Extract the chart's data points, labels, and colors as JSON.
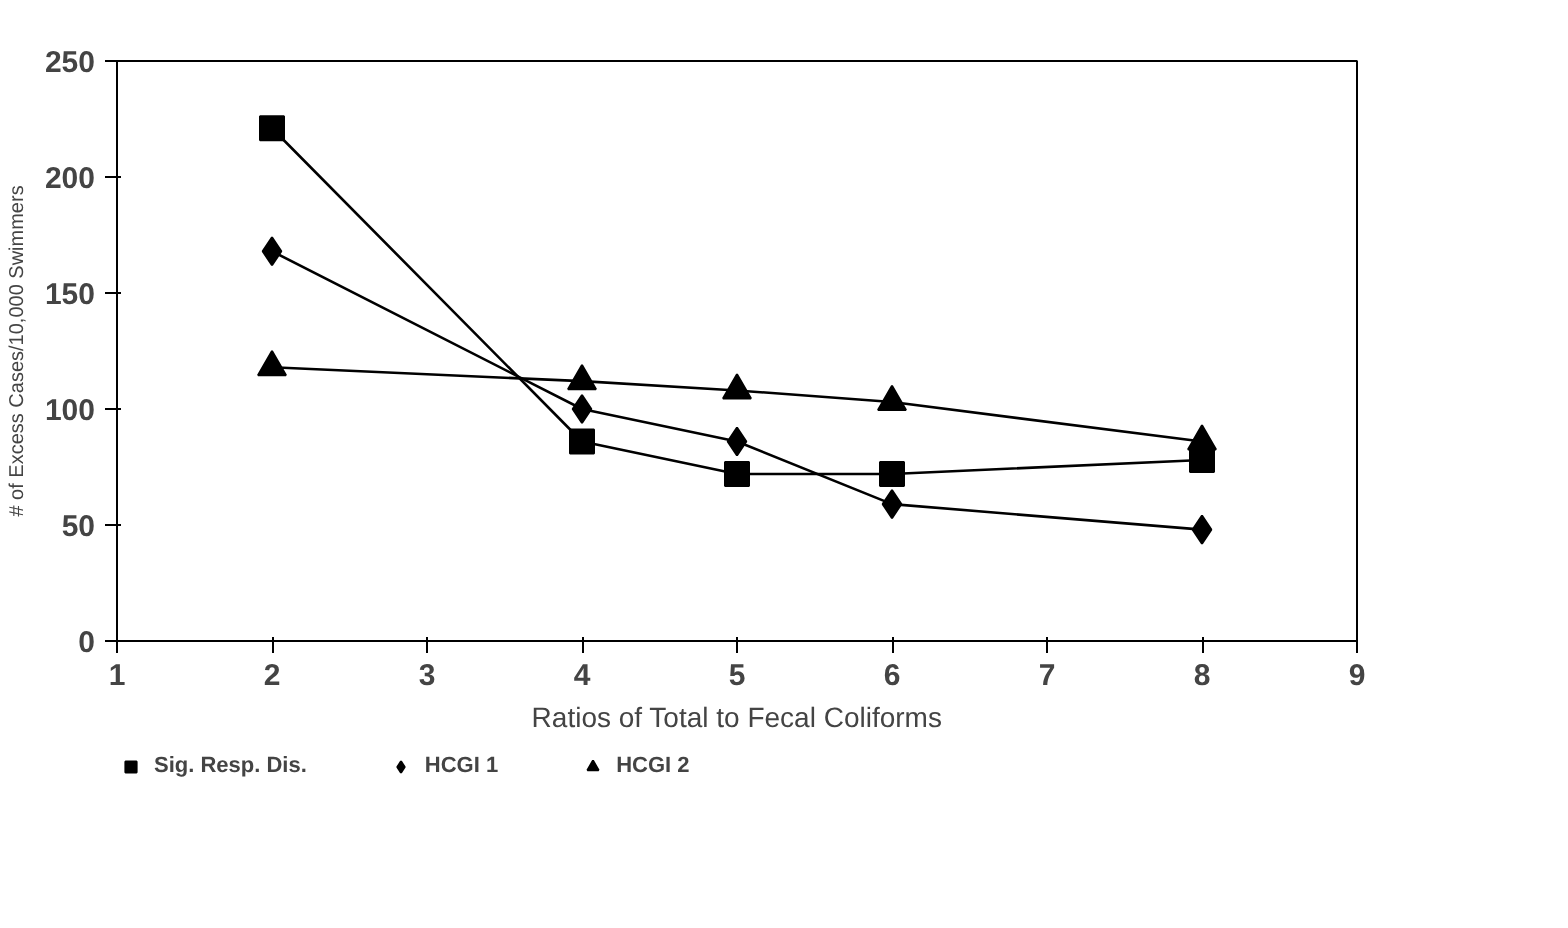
{
  "chart_data": {
    "type": "line",
    "xlabel": "Ratios of Total to Fecal Coliforms",
    "ylabel": "# of Excess Cases/10,000 Swimmers",
    "x": [
      2,
      4,
      5,
      6,
      8
    ],
    "series": [
      {
        "name": "Sig. Resp. Dis.",
        "color": "#000000",
        "marker": "square",
        "values": [
          221,
          86,
          72,
          72,
          78
        ]
      },
      {
        "name": "HCGI 1",
        "color": "#000000",
        "marker": "diamond",
        "values": [
          168,
          100,
          86,
          59,
          48
        ]
      },
      {
        "name": "HCGI 2",
        "color": "#000000",
        "marker": "triangle",
        "values": [
          118,
          112,
          108,
          103,
          86
        ]
      }
    ],
    "xlim": [
      1,
      9
    ],
    "xticks": [
      1,
      2,
      3,
      4,
      5,
      6,
      7,
      8,
      9
    ],
    "ylim": [
      0,
      250
    ],
    "yticks": [
      0,
      50,
      100,
      150,
      200,
      250
    ],
    "grid": false,
    "legend": "bottom",
    "line_style": "solid"
  }
}
